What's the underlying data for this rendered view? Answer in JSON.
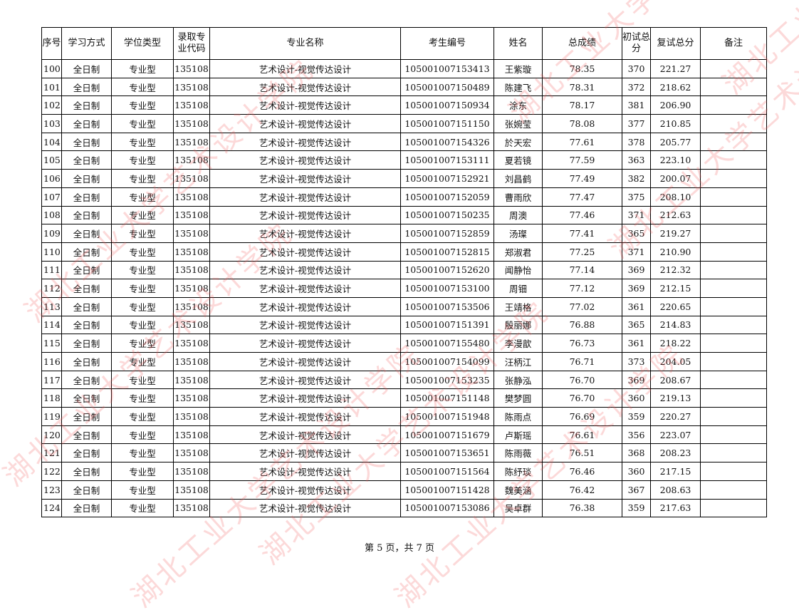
{
  "watermark": "湖北工业大学艺术设计学院",
  "table": {
    "headers": [
      "序号",
      "学习方式",
      "学位类型",
      "录取专业代码",
      "专业名称",
      "考生编号",
      "姓名",
      "总成绩",
      "初试总分",
      "复试总分",
      "备注"
    ],
    "rows": [
      [
        "100",
        "全日制",
        "专业型",
        "135108",
        "艺术设计-视觉传达设计",
        "105001007153413",
        "王紫璇",
        "78.35",
        "370",
        "221.27",
        ""
      ],
      [
        "101",
        "全日制",
        "专业型",
        "135108",
        "艺术设计-视觉传达设计",
        "105001007150489",
        "陈建飞",
        "78.31",
        "372",
        "218.62",
        ""
      ],
      [
        "102",
        "全日制",
        "专业型",
        "135108",
        "艺术设计-视觉传达设计",
        "105001007150934",
        "涂东",
        "78.17",
        "381",
        "206.90",
        ""
      ],
      [
        "103",
        "全日制",
        "专业型",
        "135108",
        "艺术设计-视觉传达设计",
        "105001007151150",
        "张婉莹",
        "78.08",
        "377",
        "210.85",
        ""
      ],
      [
        "104",
        "全日制",
        "专业型",
        "135108",
        "艺术设计-视觉传达设计",
        "105001007154326",
        "於天宏",
        "77.61",
        "378",
        "205.77",
        ""
      ],
      [
        "105",
        "全日制",
        "专业型",
        "135108",
        "艺术设计-视觉传达设计",
        "105001007153111",
        "夏若镜",
        "77.59",
        "363",
        "223.10",
        ""
      ],
      [
        "106",
        "全日制",
        "专业型",
        "135108",
        "艺术设计-视觉传达设计",
        "105001007152921",
        "刘昌鹤",
        "77.49",
        "382",
        "200.07",
        ""
      ],
      [
        "107",
        "全日制",
        "专业型",
        "135108",
        "艺术设计-视觉传达设计",
        "105001007152059",
        "曹雨欣",
        "77.47",
        "375",
        "208.10",
        ""
      ],
      [
        "108",
        "全日制",
        "专业型",
        "135108",
        "艺术设计-视觉传达设计",
        "105001007150235",
        "周澳",
        "77.46",
        "371",
        "212.63",
        ""
      ],
      [
        "109",
        "全日制",
        "专业型",
        "135108",
        "艺术设计-视觉传达设计",
        "105001007152859",
        "汤璨",
        "77.41",
        "365",
        "219.27",
        ""
      ],
      [
        "110",
        "全日制",
        "专业型",
        "135108",
        "艺术设计-视觉传达设计",
        "105001007152815",
        "郑淑君",
        "77.25",
        "371",
        "210.90",
        ""
      ],
      [
        "111",
        "全日制",
        "专业型",
        "135108",
        "艺术设计-视觉传达设计",
        "105001007152620",
        "闻静怡",
        "77.14",
        "369",
        "212.32",
        ""
      ],
      [
        "112",
        "全日制",
        "专业型",
        "135108",
        "艺术设计-视觉传达设计",
        "105001007153100",
        "周钿",
        "77.12",
        "369",
        "212.15",
        ""
      ],
      [
        "113",
        "全日制",
        "专业型",
        "135108",
        "艺术设计-视觉传达设计",
        "105001007153506",
        "王靖格",
        "77.02",
        "361",
        "220.65",
        ""
      ],
      [
        "114",
        "全日制",
        "专业型",
        "135108",
        "艺术设计-视觉传达设计",
        "105001007151391",
        "殷丽娜",
        "76.88",
        "365",
        "214.83",
        ""
      ],
      [
        "115",
        "全日制",
        "专业型",
        "135108",
        "艺术设计-视觉传达设计",
        "105001007155480",
        "李漫歆",
        "76.73",
        "361",
        "218.22",
        ""
      ],
      [
        "116",
        "全日制",
        "专业型",
        "135108",
        "艺术设计-视觉传达设计",
        "105001007154099",
        "汪柄江",
        "76.71",
        "373",
        "204.05",
        ""
      ],
      [
        "117",
        "全日制",
        "专业型",
        "135108",
        "艺术设计-视觉传达设计",
        "105001007153235",
        "张静泓",
        "76.70",
        "369",
        "208.67",
        ""
      ],
      [
        "118",
        "全日制",
        "专业型",
        "135108",
        "艺术设计-视觉传达设计",
        "105001007151148",
        "樊梦圆",
        "76.70",
        "360",
        "219.13",
        ""
      ],
      [
        "119",
        "全日制",
        "专业型",
        "135108",
        "艺术设计-视觉传达设计",
        "105001007151948",
        "陈雨点",
        "76.69",
        "359",
        "220.27",
        ""
      ],
      [
        "120",
        "全日制",
        "专业型",
        "135108",
        "艺术设计-视觉传达设计",
        "105001007151679",
        "卢斯瑶",
        "76.61",
        "356",
        "223.07",
        ""
      ],
      [
        "121",
        "全日制",
        "专业型",
        "135108",
        "艺术设计-视觉传达设计",
        "105001007153651",
        "陈雨薇",
        "76.51",
        "368",
        "208.23",
        ""
      ],
      [
        "122",
        "全日制",
        "专业型",
        "135108",
        "艺术设计-视觉传达设计",
        "105001007151564",
        "陈纾琰",
        "76.46",
        "360",
        "217.15",
        ""
      ],
      [
        "123",
        "全日制",
        "专业型",
        "135108",
        "艺术设计-视觉传达设计",
        "105001007151428",
        "魏美涵",
        "76.42",
        "367",
        "208.63",
        ""
      ],
      [
        "124",
        "全日制",
        "专业型",
        "135108",
        "艺术设计-视觉传达设计",
        "105001007153086",
        "吴卓群",
        "76.38",
        "359",
        "217.63",
        ""
      ]
    ]
  },
  "footer": "第 5 页，共 7 页"
}
